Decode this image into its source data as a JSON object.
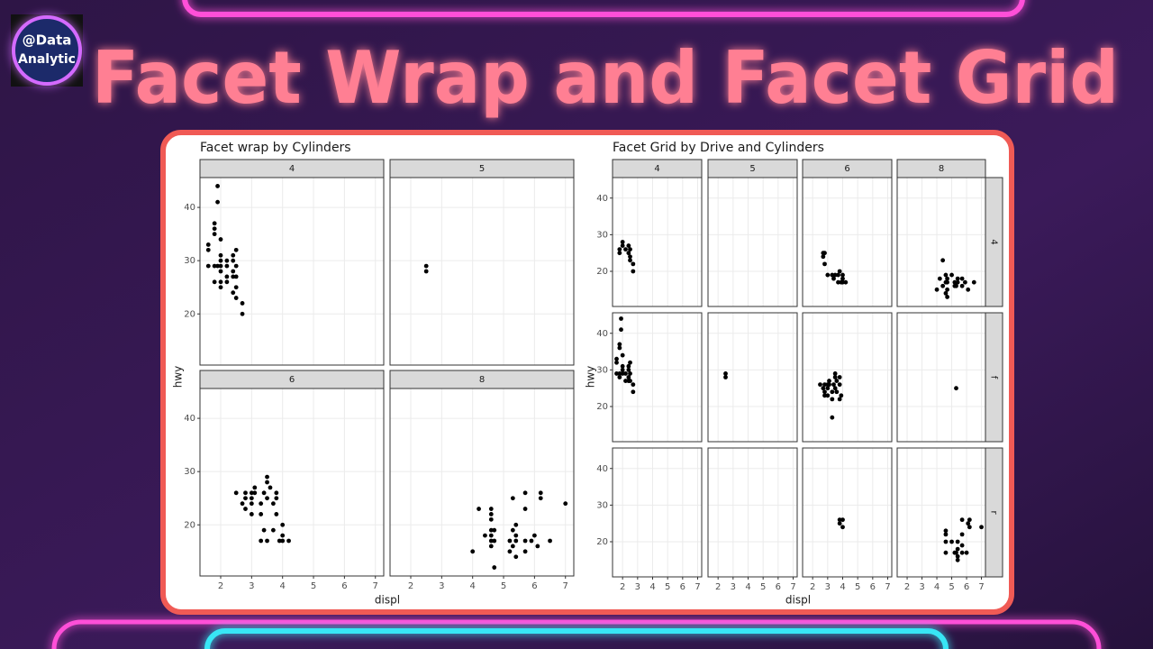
{
  "badge": {
    "line1": "@Data",
    "line2": "Analytic"
  },
  "headline": "Facet Wrap and Facet Grid",
  "chart_data": [
    {
      "type": "scatter",
      "title": "Facet wrap by Cylinders",
      "x_label": "displ",
      "y_label": "hwy",
      "xlim": [
        1.33,
        7.27
      ],
      "ylim": [
        10.4,
        45.6
      ],
      "xticks": [
        2,
        3,
        4,
        5,
        6,
        7
      ],
      "yticks": [
        20,
        30,
        40
      ],
      "grid": true,
      "color": "#000000",
      "panels": [
        {
          "label": "4",
          "points": [
            [
              1.6,
              32
            ],
            [
              1.6,
              33
            ],
            [
              1.6,
              29
            ],
            [
              1.8,
              29
            ],
            [
              1.8,
              36
            ],
            [
              1.8,
              37
            ],
            [
              1.8,
              26
            ],
            [
              1.8,
              35
            ],
            [
              1.9,
              44
            ],
            [
              1.9,
              41
            ],
            [
              1.9,
              29
            ],
            [
              2.0,
              31
            ],
            [
              2.0,
              34
            ],
            [
              2.0,
              26
            ],
            [
              2.0,
              28
            ],
            [
              2.0,
              30
            ],
            [
              2.0,
              29
            ],
            [
              2.0,
              25
            ],
            [
              2.2,
              27
            ],
            [
              2.2,
              26
            ],
            [
              2.2,
              29
            ],
            [
              2.2,
              30
            ],
            [
              2.4,
              27
            ],
            [
              2.4,
              30
            ],
            [
              2.4,
              31
            ],
            [
              2.4,
              24
            ],
            [
              2.4,
              28
            ],
            [
              2.5,
              27
            ],
            [
              2.5,
              25
            ],
            [
              2.5,
              32
            ],
            [
              2.5,
              23
            ],
            [
              2.5,
              29
            ],
            [
              2.7,
              20
            ],
            [
              2.7,
              22
            ]
          ]
        },
        {
          "label": "5",
          "points": [
            [
              2.5,
              29
            ],
            [
              2.5,
              28
            ]
          ]
        },
        {
          "label": "6",
          "points": [
            [
              2.5,
              26
            ],
            [
              2.7,
              24
            ],
            [
              2.8,
              26
            ],
            [
              2.8,
              23
            ],
            [
              2.8,
              25
            ],
            [
              3.0,
              26
            ],
            [
              3.0,
              24
            ],
            [
              3.0,
              22
            ],
            [
              3.0,
              25
            ],
            [
              3.1,
              27
            ],
            [
              3.1,
              26
            ],
            [
              3.3,
              24
            ],
            [
              3.3,
              22
            ],
            [
              3.3,
              17
            ],
            [
              3.4,
              19
            ],
            [
              3.4,
              26
            ],
            [
              3.5,
              29
            ],
            [
              3.5,
              28
            ],
            [
              3.5,
              25
            ],
            [
              3.5,
              17
            ],
            [
              3.6,
              27
            ],
            [
              3.7,
              19
            ],
            [
              3.7,
              24
            ],
            [
              3.8,
              26
            ],
            [
              3.8,
              25
            ],
            [
              3.8,
              22
            ],
            [
              3.9,
              17
            ],
            [
              4.0,
              18
            ],
            [
              4.0,
              20
            ],
            [
              4.0,
              17
            ],
            [
              4.2,
              17
            ]
          ]
        },
        {
          "label": "8",
          "points": [
            [
              4.0,
              15
            ],
            [
              4.2,
              23
            ],
            [
              4.4,
              18
            ],
            [
              4.6,
              23
            ],
            [
              4.6,
              22
            ],
            [
              4.6,
              21
            ],
            [
              4.6,
              19
            ],
            [
              4.6,
              18
            ],
            [
              4.6,
              17
            ],
            [
              4.6,
              16
            ],
            [
              4.7,
              12
            ],
            [
              4.7,
              17
            ],
            [
              4.7,
              19
            ],
            [
              5.2,
              17
            ],
            [
              5.2,
              15
            ],
            [
              5.3,
              25
            ],
            [
              5.3,
              19
            ],
            [
              5.3,
              16
            ],
            [
              5.4,
              20
            ],
            [
              5.4,
              18
            ],
            [
              5.4,
              17
            ],
            [
              5.4,
              14
            ],
            [
              5.7,
              26
            ],
            [
              5.7,
              17
            ],
            [
              5.7,
              15
            ],
            [
              5.9,
              17
            ],
            [
              6.0,
              18
            ],
            [
              6.1,
              16
            ],
            [
              6.2,
              26
            ],
            [
              6.2,
              25
            ],
            [
              6.5,
              17
            ],
            [
              7.0,
              24
            ],
            [
              5.7,
              23
            ]
          ]
        }
      ]
    },
    {
      "type": "scatter",
      "title": "Facet Grid by Drive and Cylinders",
      "x_label": "displ",
      "y_label": "hwy",
      "xlim": [
        1.33,
        7.27
      ],
      "ylim": [
        10.4,
        45.6
      ],
      "xticks": [
        2,
        3,
        4,
        5,
        6,
        7
      ],
      "yticks": [
        20,
        30,
        40
      ],
      "grid": true,
      "color": "#000000",
      "col_labels": [
        "4",
        "5",
        "6",
        "8"
      ],
      "row_labels": [
        "4",
        "f",
        "r"
      ],
      "panels": [
        {
          "points": [
            [
              1.8,
              26
            ],
            [
              1.8,
              25
            ],
            [
              2.0,
              28
            ],
            [
              2.0,
              27
            ],
            [
              2.2,
              26
            ],
            [
              2.4,
              27
            ],
            [
              2.4,
              25
            ],
            [
              2.5,
              26
            ],
            [
              2.5,
              24
            ],
            [
              2.5,
              23
            ],
            [
              2.7,
              22
            ],
            [
              2.7,
              20
            ]
          ]
        },
        {
          "points": []
        },
        {
          "points": [
            [
              2.7,
              24
            ],
            [
              2.7,
              25
            ],
            [
              2.8,
              22
            ],
            [
              2.8,
              25
            ],
            [
              3.0,
              19
            ],
            [
              3.3,
              19
            ],
            [
              3.4,
              18
            ],
            [
              3.5,
              19
            ],
            [
              3.7,
              17
            ],
            [
              3.7,
              19
            ],
            [
              3.8,
              20
            ],
            [
              3.9,
              17
            ],
            [
              4.0,
              17
            ],
            [
              4.0,
              19
            ],
            [
              4.0,
              18
            ],
            [
              4.2,
              17
            ]
          ]
        },
        {
          "points": [
            [
              4.0,
              15
            ],
            [
              4.2,
              18
            ],
            [
              4.4,
              16
            ],
            [
              4.6,
              17
            ],
            [
              4.6,
              19
            ],
            [
              4.7,
              17
            ],
            [
              4.7,
              18
            ],
            [
              4.7,
              13
            ],
            [
              4.7,
              15
            ],
            [
              5.0,
              19
            ],
            [
              5.2,
              17
            ],
            [
              5.2,
              16
            ],
            [
              5.3,
              16
            ],
            [
              5.4,
              18
            ],
            [
              5.4,
              17
            ],
            [
              5.7,
              18
            ],
            [
              5.7,
              16
            ],
            [
              5.9,
              17
            ],
            [
              6.1,
              15
            ],
            [
              6.5,
              17
            ],
            [
              4.4,
              23
            ],
            [
              4.6,
              14
            ]
          ]
        },
        {
          "points": [
            [
              1.6,
              32
            ],
            [
              1.6,
              33
            ],
            [
              1.8,
              29
            ],
            [
              1.8,
              36
            ],
            [
              1.8,
              37
            ],
            [
              1.9,
              44
            ],
            [
              1.9,
              41
            ],
            [
              2.0,
              31
            ],
            [
              2.0,
              34
            ],
            [
              2.0,
              30
            ],
            [
              2.0,
              29
            ],
            [
              2.2,
              27
            ],
            [
              2.2,
              29
            ],
            [
              2.4,
              27
            ],
            [
              2.4,
              31
            ],
            [
              2.4,
              30
            ],
            [
              2.4,
              28
            ],
            [
              2.5,
              29
            ],
            [
              2.5,
              32
            ],
            [
              2.5,
              27
            ],
            [
              2.7,
              26
            ],
            [
              2.7,
              24
            ],
            [
              1.8,
              28
            ],
            [
              1.6,
              29
            ]
          ]
        },
        {
          "points": [
            [
              2.5,
              29
            ],
            [
              2.5,
              28
            ]
          ]
        },
        {
          "points": [
            [
              2.5,
              26
            ],
            [
              2.7,
              25
            ],
            [
              2.8,
              26
            ],
            [
              2.8,
              24
            ],
            [
              3.0,
              26
            ],
            [
              3.0,
              23
            ],
            [
              3.1,
              27
            ],
            [
              3.1,
              26
            ],
            [
              3.3,
              24
            ],
            [
              3.3,
              22
            ],
            [
              3.4,
              26
            ],
            [
              3.5,
              29
            ],
            [
              3.5,
              28
            ],
            [
              3.5,
              25
            ],
            [
              3.6,
              27
            ],
            [
              3.6,
              24
            ],
            [
              3.3,
              17
            ],
            [
              3.8,
              26
            ],
            [
              3.8,
              22
            ],
            [
              3.9,
              23
            ],
            [
              3.8,
              28
            ],
            [
              3.0,
              25
            ],
            [
              2.8,
              23
            ]
          ]
        },
        {
          "points": [
            [
              5.3,
              25
            ]
          ]
        },
        {
          "points": []
        },
        {
          "points": []
        },
        {
          "points": [
            [
              3.8,
              26
            ],
            [
              3.8,
              25
            ],
            [
              4.0,
              26
            ],
            [
              4.0,
              24
            ]
          ]
        },
        {
          "points": [
            [
              4.6,
              23
            ],
            [
              4.6,
              22
            ],
            [
              4.6,
              17
            ],
            [
              4.6,
              20
            ],
            [
              5.0,
              20
            ],
            [
              5.3,
              17
            ],
            [
              5.4,
              18
            ],
            [
              5.4,
              16
            ],
            [
              5.4,
              15
            ],
            [
              5.7,
              26
            ],
            [
              5.7,
              17
            ],
            [
              5.7,
              19
            ],
            [
              5.7,
              22
            ],
            [
              6.0,
              17
            ],
            [
              6.1,
              25
            ],
            [
              6.2,
              26
            ],
            [
              6.2,
              24
            ],
            [
              7.0,
              24
            ],
            [
              5.4,
              20
            ],
            [
              5.2,
              17
            ]
          ]
        }
      ]
    }
  ]
}
